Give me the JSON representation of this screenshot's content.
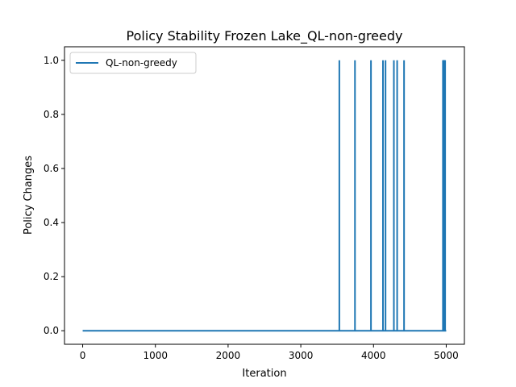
{
  "chart_data": {
    "type": "line",
    "title": "Policy Stability Frozen Lake_QL-non-greedy",
    "xlabel": "Iteration",
    "ylabel": "Policy Changes",
    "xlim": [
      -250,
      5250
    ],
    "ylim": [
      -0.05,
      1.05
    ],
    "xticks": [
      0,
      1000,
      2000,
      3000,
      4000,
      5000
    ],
    "yticks": [
      0.0,
      0.2,
      0.4,
      0.6,
      0.8,
      1.0
    ],
    "xtick_labels": [
      "0",
      "1000",
      "2000",
      "3000",
      "4000",
      "5000"
    ],
    "ytick_labels": [
      "0.0",
      "0.2",
      "0.4",
      "0.6",
      "0.8",
      "1.0"
    ],
    "grid": false,
    "legend": "upper-left",
    "series": [
      {
        "name": "QL-non-greedy",
        "color": "#1f77b4",
        "baseline_value": 0,
        "x_range": [
          0,
          5000
        ],
        "spikes_at": [
          3530,
          3745,
          3965,
          4130,
          4165,
          4280,
          4325,
          4420,
          4955,
          4960,
          4965,
          4970,
          4975,
          4980,
          4985
        ],
        "spike_value": 1
      }
    ]
  }
}
